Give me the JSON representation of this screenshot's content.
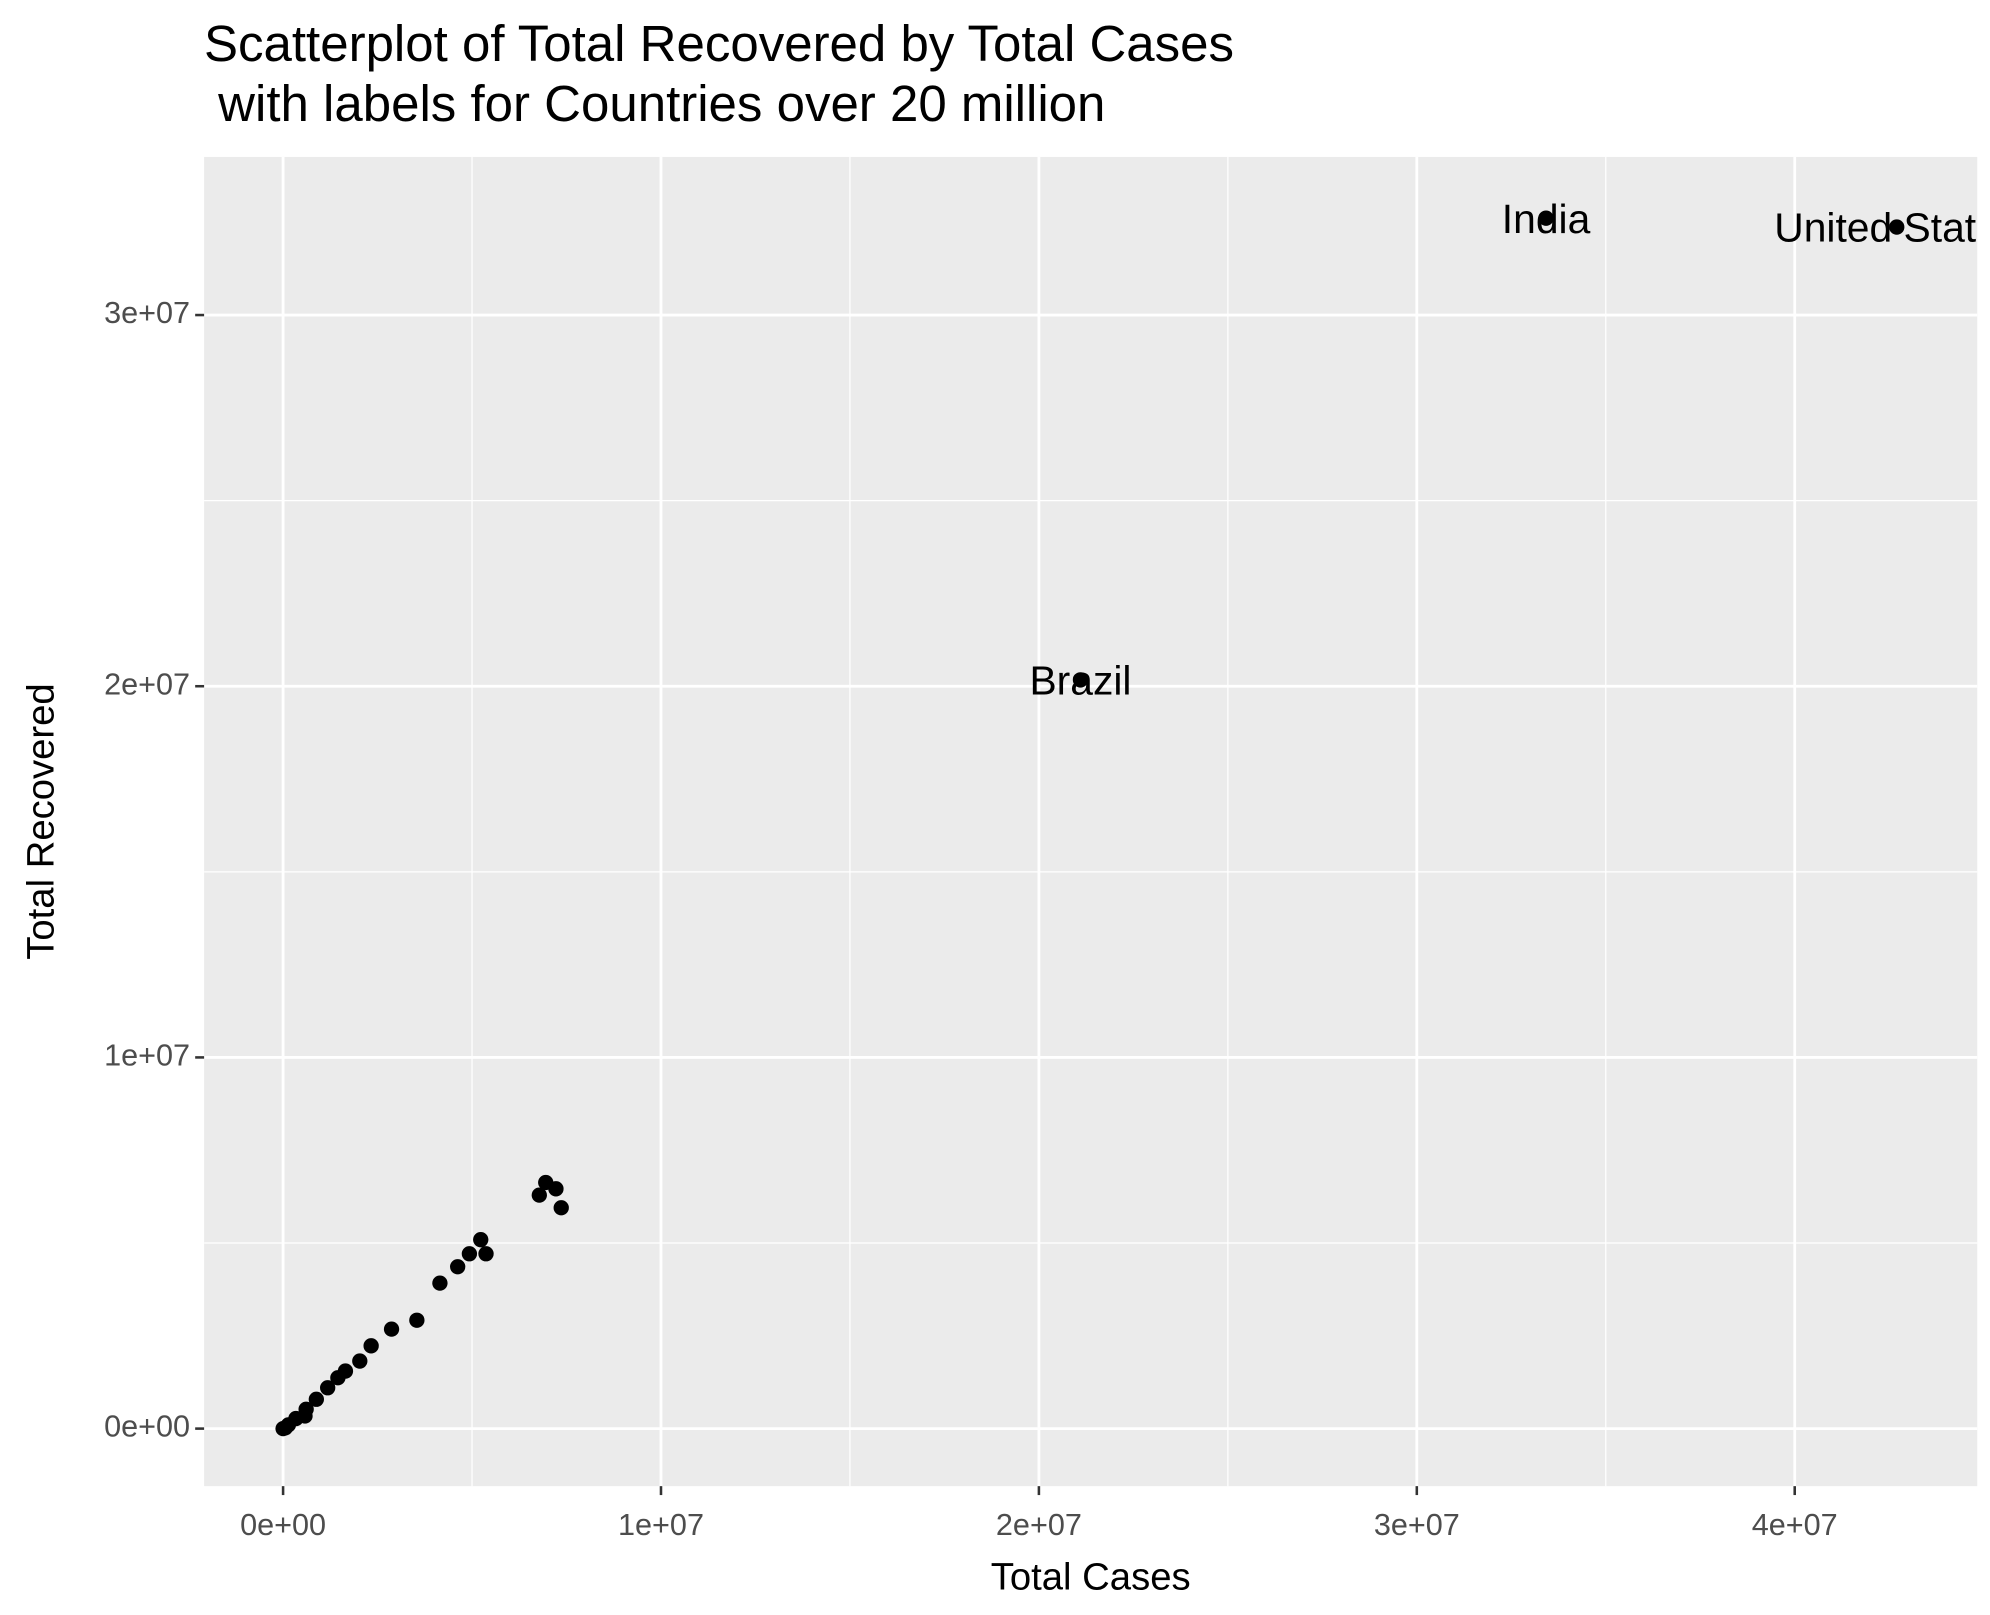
{
  "chart_data": {
    "type": "scatter",
    "title": "Scatterplot of Total Recovered by Total Cases\n with labels for Countries over 20 million",
    "x_label": "Total Cases",
    "y_label": "Total Recovered",
    "color": "#000000",
    "grid": true,
    "xlim": [
      -2090000,
      44830000
    ],
    "ylim": [
      -1550000,
      34260000
    ],
    "xticks": [
      {
        "value": 0,
        "label": "0e+00"
      },
      {
        "value": 10000000,
        "label": "1e+07"
      },
      {
        "value": 20000000,
        "label": "2e+07"
      },
      {
        "value": 30000000,
        "label": "3e+07"
      },
      {
        "value": 40000000,
        "label": "4e+07"
      }
    ],
    "yticks": [
      {
        "value": 0,
        "label": "0e+00"
      },
      {
        "value": 10000000,
        "label": "1e+07"
      },
      {
        "value": 20000000,
        "label": "2e+07"
      },
      {
        "value": 30000000,
        "label": "3e+07"
      }
    ],
    "x": [
      42700000,
      33420000,
      21100000,
      6780000,
      6950000,
      7220000,
      7360000,
      5230000,
      4930000,
      5370000,
      4620000,
      4150000,
      3540000,
      2870000,
      2330000,
      2030000,
      1650000,
      1450000,
      1180000,
      880000,
      610000,
      580000,
      340000,
      140000,
      60000,
      0
    ],
    "y": [
      32370000,
      32610000,
      20170000,
      6290000,
      6630000,
      6460000,
      5950000,
      5090000,
      4710000,
      4710000,
      4360000,
      3920000,
      2920000,
      2680000,
      2230000,
      1820000,
      1550000,
      1370000,
      1100000,
      790000,
      520000,
      340000,
      270000,
      100000,
      20000,
      0
    ],
    "labels": [
      "United States",
      "India",
      "Brazil",
      null,
      null,
      null,
      null,
      null,
      null,
      null,
      null,
      null,
      null,
      null,
      null,
      null,
      null,
      null,
      null,
      null,
      null,
      null,
      null,
      null,
      null,
      null
    ]
  }
}
